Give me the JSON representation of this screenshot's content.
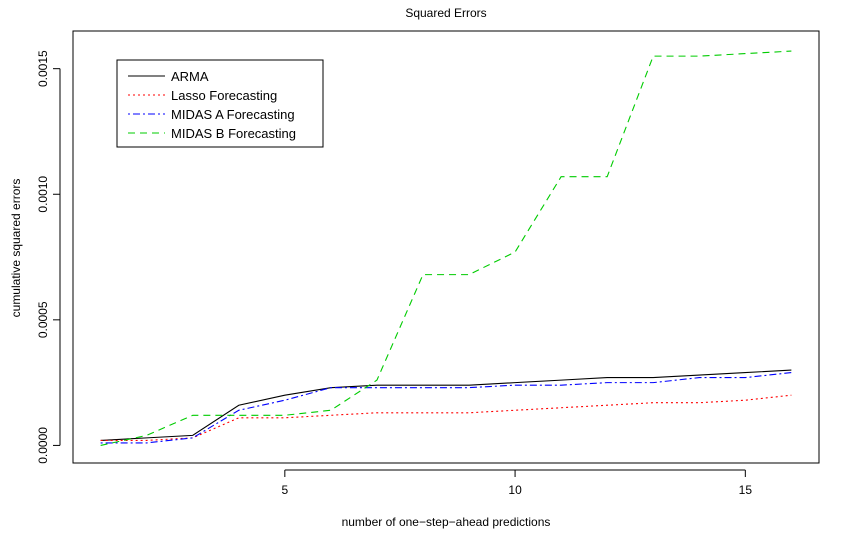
{
  "chart_data": {
    "type": "line",
    "title": "Squared Errors",
    "xlabel": "number of one−step−ahead predictions",
    "ylabel": "cumulative squared errors",
    "x": [
      1,
      2,
      3,
      4,
      5,
      6,
      7,
      8,
      9,
      10,
      11,
      12,
      13,
      14,
      15,
      16
    ],
    "xlim": [
      0.4,
      16.6
    ],
    "ylim": [
      -7e-05,
      0.00165
    ],
    "xticks": [
      5,
      10,
      15
    ],
    "xtick_labels": [
      "5",
      "10",
      "15"
    ],
    "yticks": [
      0,
      0.0005,
      0.001,
      0.0015
    ],
    "ytick_labels": [
      "0.0000",
      "0.0005",
      "0.0010",
      "0.0015"
    ],
    "grid": false,
    "legend_position": "top-left",
    "series": [
      {
        "name": "ARMA",
        "color": "#000000",
        "dash": "solid",
        "values": [
          2e-05,
          3e-05,
          4e-05,
          0.00016,
          0.0002,
          0.00023,
          0.00024,
          0.00024,
          0.00024,
          0.00025,
          0.00026,
          0.00027,
          0.00027,
          0.00028,
          0.00029,
          0.0003
        ]
      },
      {
        "name": "Lasso Forecasting",
        "color": "#ff0000",
        "dash": "dotted",
        "values": [
          2e-05,
          2e-05,
          3e-05,
          0.00011,
          0.00011,
          0.00012,
          0.00013,
          0.00013,
          0.00013,
          0.00014,
          0.00015,
          0.00016,
          0.00017,
          0.00017,
          0.00018,
          0.0002
        ]
      },
      {
        "name": "MIDAS A Forecasting",
        "color": "#0000ff",
        "dash": "dotdash",
        "values": [
          1e-05,
          1e-05,
          3e-05,
          0.00014,
          0.00018,
          0.00023,
          0.00023,
          0.00023,
          0.00023,
          0.00024,
          0.00024,
          0.00025,
          0.00025,
          0.00027,
          0.00027,
          0.00029
        ]
      },
      {
        "name": "MIDAS B Forecasting",
        "color": "#00cc00",
        "dash": "dashed",
        "values": [
          0.0,
          4e-05,
          0.00012,
          0.00012,
          0.00012,
          0.00014,
          0.00026,
          0.00068,
          0.00068,
          0.00077,
          0.00107,
          0.00107,
          0.00155,
          0.00155,
          0.00156,
          0.00157
        ]
      }
    ]
  }
}
